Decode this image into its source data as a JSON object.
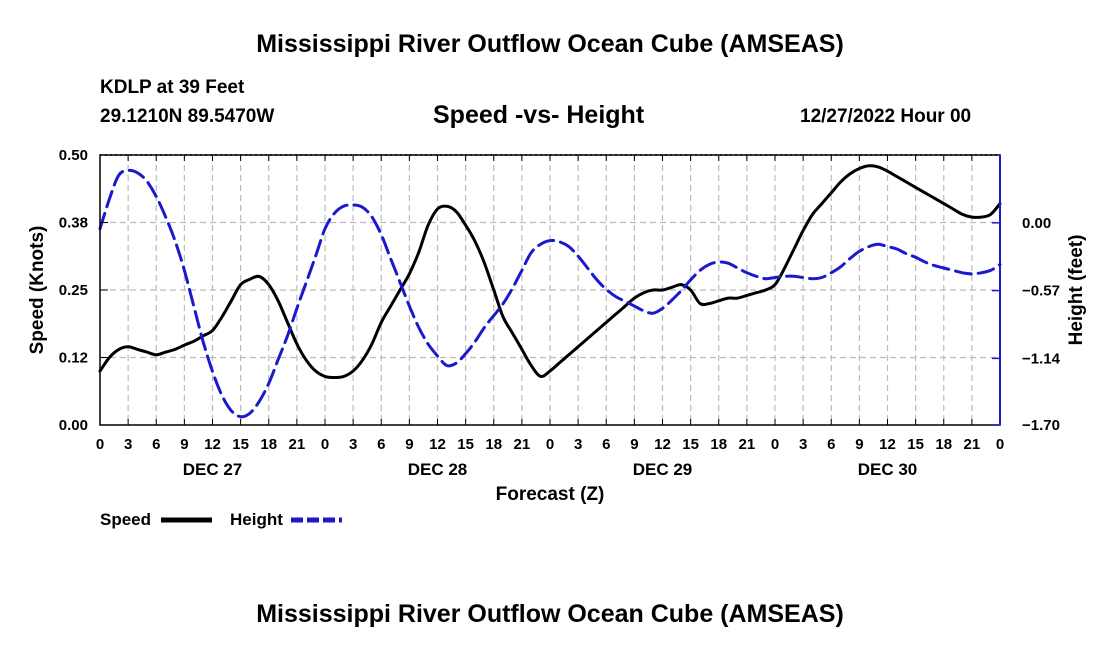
{
  "header": {
    "title": "Mississippi River Outflow Ocean Cube (AMSEAS)",
    "station": "KDLP at 39 Feet",
    "location": "29.1210N  89.5470W",
    "subtitle": "Speed -vs- Height",
    "date": "12/27/2022 Hour 00"
  },
  "footer": {
    "title": "Mississippi River Outflow Ocean Cube (AMSEAS)"
  },
  "legend": {
    "speed_label": "Speed",
    "height_label": "Height"
  },
  "colors": {
    "speed": "#000000",
    "height": "#1a1acc",
    "grid": "#bbbbbb"
  },
  "chart_data": {
    "type": "line",
    "title": "Speed -vs- Height",
    "xlabel": "Forecast (Z)",
    "ylabel": "Speed (Knots)",
    "y2label": "Height (feet)",
    "xlim": [
      0,
      96
    ],
    "ylim": [
      0,
      0.5
    ],
    "y2lim": [
      -1.7,
      0.57
    ],
    "grid": true,
    "legend_position": "bottom-left",
    "x_tick_hours": [
      0,
      3,
      6,
      9,
      12,
      15,
      18,
      21,
      24,
      27,
      30,
      33,
      36,
      39,
      42,
      45,
      48,
      51,
      54,
      57,
      60,
      63,
      66,
      69,
      72,
      75,
      78,
      81,
      84,
      87,
      90,
      93,
      96
    ],
    "x_tick_labels": [
      "0",
      "3",
      "6",
      "9",
      "12",
      "15",
      "18",
      "21",
      "0",
      "3",
      "6",
      "9",
      "12",
      "15",
      "18",
      "21",
      "0",
      "3",
      "6",
      "9",
      "12",
      "15",
      "18",
      "21",
      "0",
      "3",
      "6",
      "9",
      "12",
      "15",
      "18",
      "21",
      "0"
    ],
    "day_labels": [
      {
        "hour": 12,
        "label": "DEC 27"
      },
      {
        "hour": 36,
        "label": "DEC 28"
      },
      {
        "hour": 60,
        "label": "DEC 29"
      },
      {
        "hour": 84,
        "label": "DEC 30"
      }
    ],
    "y_ticks": [
      0.0,
      0.125,
      0.25,
      0.375,
      0.5
    ],
    "y_tick_labels": [
      "0.00",
      "0.12",
      "0.25",
      "0.38",
      "0.50"
    ],
    "y2_ticks": [
      -1.7,
      -1.14,
      -0.57,
      0.0
    ],
    "y2_tick_labels": [
      "−1.70",
      "−1.14",
      "−0.57",
      "0.00"
    ],
    "series": [
      {
        "name": "Speed",
        "axis": "left",
        "style": "solid",
        "x": [
          0,
          1,
          2,
          3,
          4,
          5,
          6,
          7,
          8,
          9,
          10,
          11,
          12,
          13,
          14,
          15,
          16,
          17,
          18,
          19,
          20,
          21,
          22,
          23,
          24,
          25,
          26,
          27,
          28,
          29,
          30,
          31,
          32,
          33,
          34,
          35,
          36,
          37,
          38,
          39,
          40,
          41,
          42,
          43,
          44,
          45,
          46,
          47,
          48,
          49,
          50,
          51,
          52,
          53,
          54,
          55,
          56,
          57,
          58,
          59,
          60,
          61,
          62,
          63,
          64,
          65,
          66,
          67,
          68,
          69,
          70,
          71,
          72,
          73,
          74,
          75,
          76,
          77,
          78,
          79,
          80,
          81,
          82,
          83,
          84,
          85,
          86,
          87,
          88,
          89,
          90,
          91,
          92,
          93,
          94,
          95,
          96
        ],
        "values": [
          0.1,
          0.125,
          0.14,
          0.145,
          0.14,
          0.135,
          0.13,
          0.135,
          0.14,
          0.148,
          0.155,
          0.165,
          0.175,
          0.2,
          0.23,
          0.26,
          0.27,
          0.275,
          0.26,
          0.23,
          0.19,
          0.15,
          0.12,
          0.1,
          0.09,
          0.088,
          0.09,
          0.1,
          0.12,
          0.15,
          0.19,
          0.22,
          0.25,
          0.28,
          0.32,
          0.37,
          0.4,
          0.405,
          0.395,
          0.37,
          0.34,
          0.3,
          0.25,
          0.2,
          0.17,
          0.14,
          0.11,
          0.09,
          0.1,
          0.115,
          0.13,
          0.145,
          0.16,
          0.175,
          0.19,
          0.205,
          0.22,
          0.235,
          0.245,
          0.25,
          0.25,
          0.255,
          0.26,
          0.25,
          0.225,
          0.225,
          0.23,
          0.235,
          0.235,
          0.24,
          0.245,
          0.25,
          0.26,
          0.29,
          0.325,
          0.36,
          0.39,
          0.41,
          0.43,
          0.45,
          0.465,
          0.475,
          0.48,
          0.478,
          0.47,
          0.46,
          0.45,
          0.44,
          0.43,
          0.42,
          0.41,
          0.4,
          0.39,
          0.385,
          0.385,
          0.39,
          0.41
        ]
      },
      {
        "name": "Height",
        "axis": "right",
        "style": "dashed",
        "x": [
          0,
          1,
          2,
          3,
          4,
          5,
          6,
          7,
          8,
          9,
          10,
          11,
          12,
          13,
          14,
          15,
          16,
          17,
          18,
          19,
          20,
          21,
          22,
          23,
          24,
          25,
          26,
          27,
          28,
          29,
          30,
          31,
          32,
          33,
          34,
          35,
          36,
          37,
          38,
          39,
          40,
          41,
          42,
          43,
          44,
          45,
          46,
          47,
          48,
          49,
          50,
          51,
          52,
          53,
          54,
          55,
          56,
          57,
          58,
          59,
          60,
          61,
          62,
          63,
          64,
          65,
          66,
          67,
          68,
          69,
          70,
          71,
          72,
          73,
          74,
          75,
          76,
          77,
          78,
          79,
          80,
          81,
          82,
          83,
          84,
          85,
          86,
          87,
          88,
          89,
          90,
          91,
          92,
          93,
          94,
          95,
          96
        ],
        "values": [
          -0.05,
          0.2,
          0.4,
          0.44,
          0.42,
          0.35,
          0.22,
          0.05,
          -0.15,
          -0.4,
          -0.7,
          -1.0,
          -1.25,
          -1.45,
          -1.58,
          -1.63,
          -1.6,
          -1.5,
          -1.35,
          -1.15,
          -0.95,
          -0.72,
          -0.5,
          -0.28,
          -0.05,
          0.08,
          0.14,
          0.15,
          0.13,
          0.05,
          -0.1,
          -0.3,
          -0.5,
          -0.7,
          -0.88,
          -1.02,
          -1.12,
          -1.2,
          -1.18,
          -1.1,
          -1.0,
          -0.88,
          -0.78,
          -0.68,
          -0.55,
          -0.4,
          -0.25,
          -0.18,
          -0.15,
          -0.16,
          -0.2,
          -0.28,
          -0.38,
          -0.48,
          -0.56,
          -0.62,
          -0.66,
          -0.7,
          -0.74,
          -0.76,
          -0.72,
          -0.65,
          -0.57,
          -0.48,
          -0.4,
          -0.35,
          -0.33,
          -0.34,
          -0.38,
          -0.42,
          -0.45,
          -0.47,
          -0.46,
          -0.45,
          -0.45,
          -0.46,
          -0.47,
          -0.46,
          -0.42,
          -0.37,
          -0.3,
          -0.24,
          -0.2,
          -0.18,
          -0.2,
          -0.22,
          -0.26,
          -0.29,
          -0.33,
          -0.36,
          -0.38,
          -0.4,
          -0.42,
          -0.43,
          -0.42,
          -0.4,
          -0.35
        ]
      }
    ]
  }
}
